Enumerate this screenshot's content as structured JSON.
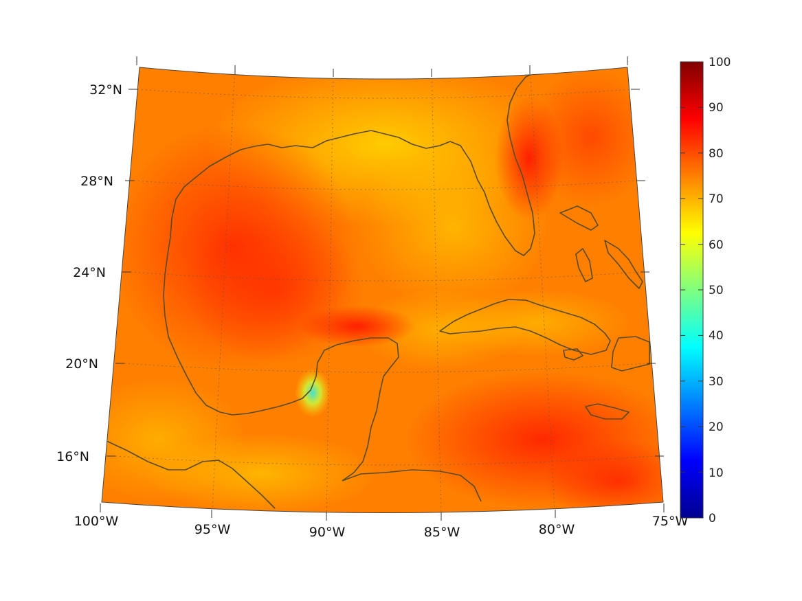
{
  "map": {
    "projection": "conic",
    "region": "Gulf of Mexico and Caribbean",
    "coastline_color": "#5a4a22",
    "graticule_style": "dotted",
    "lon_labels": [
      "100°W",
      "95°W",
      "90°W",
      "85°W",
      "80°W",
      "75°W"
    ],
    "lat_labels": [
      "16°N",
      "20°N",
      "24°N",
      "28°N",
      "32°N"
    ]
  },
  "colorbar": {
    "colormap": "jet",
    "min": 0,
    "max": 100,
    "tick_labels": [
      "0",
      "10",
      "20",
      "30",
      "40",
      "50",
      "60",
      "70",
      "80",
      "90",
      "100"
    ],
    "colors": [
      "#00008f",
      "#0000ff",
      "#00ffff",
      "#ffff00",
      "#ff0000",
      "#800000"
    ]
  }
}
